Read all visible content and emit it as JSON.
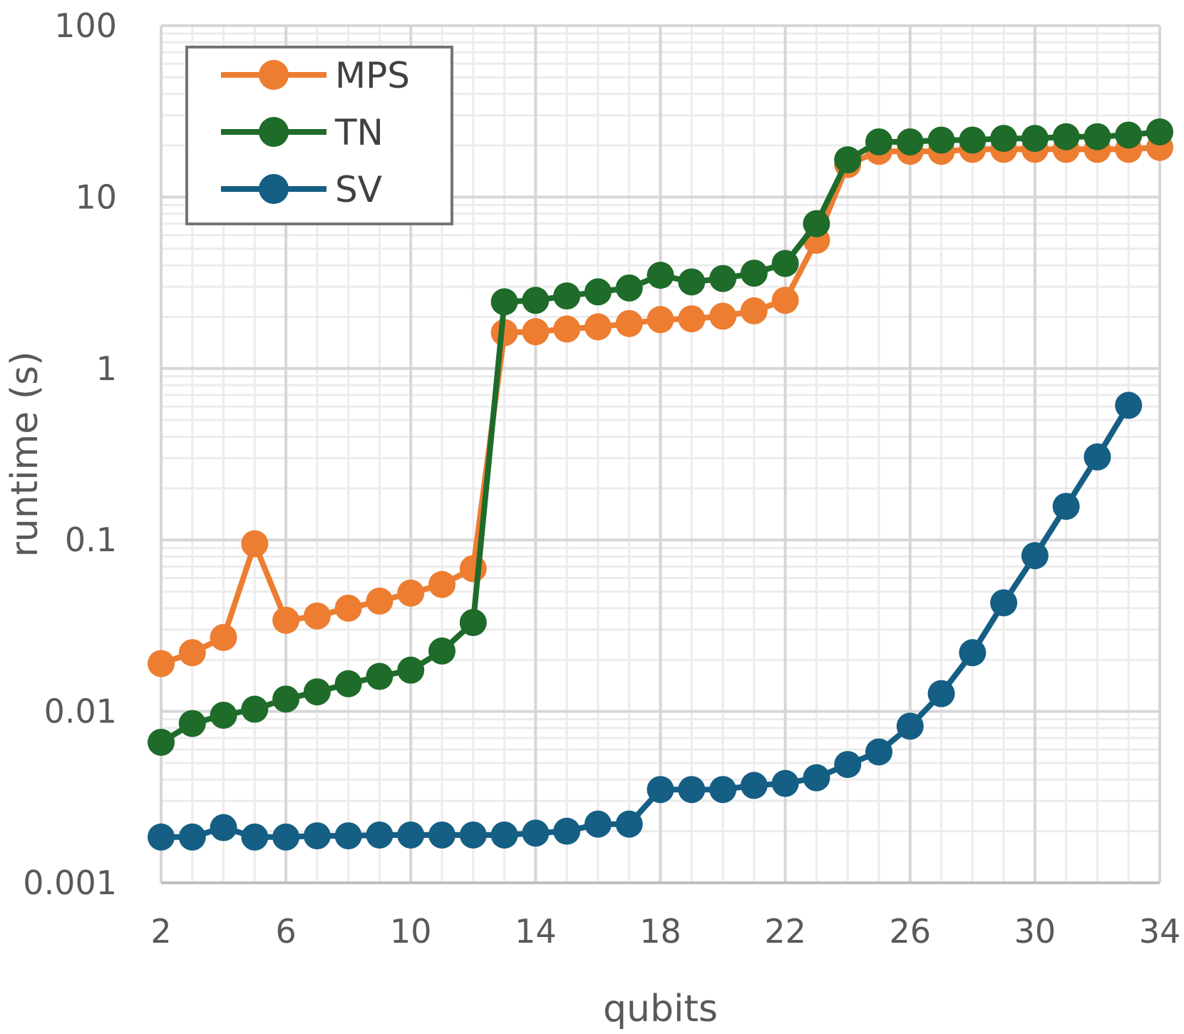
{
  "chart_data": {
    "type": "line",
    "xlabel": "qubits",
    "ylabel": "runtime (s)",
    "x_scale": "linear",
    "y_scale": "log",
    "xlim": [
      2,
      34
    ],
    "ylim": [
      0.001,
      100
    ],
    "x_ticks": [
      "2",
      "6",
      "10",
      "14",
      "18",
      "22",
      "26",
      "30",
      "34"
    ],
    "y_ticks": [
      "0.001",
      "0.01",
      "0.1",
      "1",
      "10",
      "100"
    ],
    "grid": true,
    "legend_position": "top-left",
    "series": [
      {
        "name": "MPS",
        "color": "#ED7D31",
        "x": [
          2,
          3,
          4,
          5,
          6,
          7,
          8,
          9,
          10,
          11,
          12,
          13,
          14,
          15,
          16,
          17,
          18,
          19,
          20,
          21,
          22,
          23,
          24,
          25,
          26,
          27,
          28,
          29,
          30,
          31,
          32,
          33,
          34
        ],
        "y": [
          0.019,
          0.022,
          0.027,
          0.095,
          0.034,
          0.036,
          0.04,
          0.044,
          0.049,
          0.055,
          0.068,
          1.62,
          1.64,
          1.7,
          1.75,
          1.83,
          1.93,
          1.95,
          2.02,
          2.17,
          2.5,
          5.6,
          15.5,
          18.5,
          18.5,
          18.5,
          19.0,
          19.0,
          19.0,
          19.0,
          19.0,
          19.0,
          19.5
        ]
      },
      {
        "name": "TN",
        "color": "#1E6B2A",
        "x": [
          2,
          3,
          4,
          5,
          6,
          7,
          8,
          9,
          10,
          11,
          12,
          13,
          14,
          15,
          16,
          17,
          18,
          19,
          20,
          21,
          22,
          23,
          24,
          25,
          26,
          27,
          28,
          29,
          30,
          31,
          32,
          33,
          34
        ],
        "y": [
          0.0066,
          0.0085,
          0.0095,
          0.0103,
          0.0118,
          0.013,
          0.0145,
          0.016,
          0.0174,
          0.0225,
          0.033,
          2.45,
          2.5,
          2.65,
          2.8,
          2.95,
          3.5,
          3.2,
          3.35,
          3.6,
          4.1,
          7.0,
          16.5,
          21.0,
          21.0,
          21.5,
          21.5,
          22.0,
          22.0,
          22.5,
          22.5,
          23.0,
          24.0
        ]
      },
      {
        "name": "SV",
        "color": "#155E84",
        "x": [
          2,
          3,
          4,
          5,
          6,
          7,
          8,
          9,
          10,
          11,
          12,
          13,
          14,
          15,
          16,
          17,
          18,
          19,
          20,
          21,
          22,
          23,
          24,
          25,
          26,
          27,
          28,
          29,
          30,
          31,
          32,
          33
        ],
        "y": [
          0.00185,
          0.00185,
          0.0021,
          0.00185,
          0.00185,
          0.00188,
          0.00188,
          0.0019,
          0.0019,
          0.0019,
          0.0019,
          0.0019,
          0.00195,
          0.002,
          0.0022,
          0.0022,
          0.0035,
          0.0035,
          0.0035,
          0.0037,
          0.0038,
          0.0041,
          0.0049,
          0.0058,
          0.0082,
          0.0127,
          0.022,
          0.043,
          0.081,
          0.157,
          0.305,
          0.61
        ]
      }
    ]
  }
}
